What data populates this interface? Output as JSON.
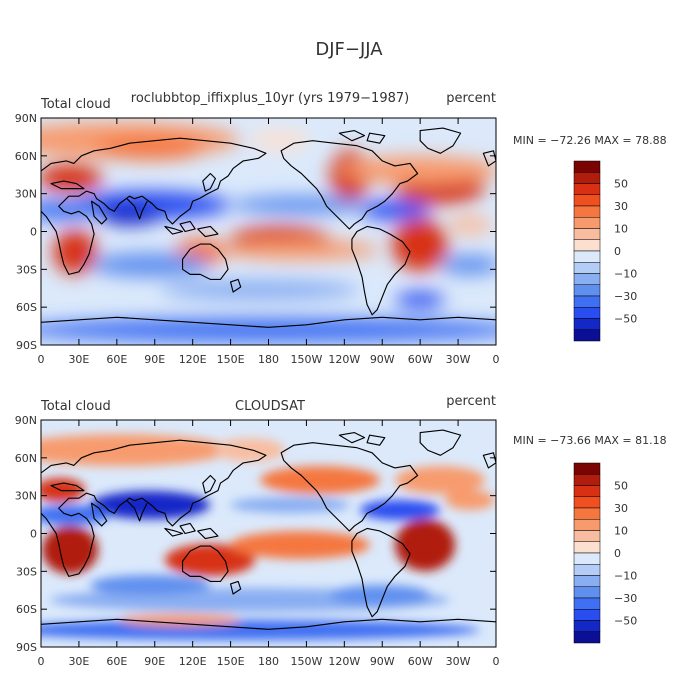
{
  "title": "DJF−JJA",
  "x_ticks": [
    "0",
    "30E",
    "60E",
    "90E",
    "120E",
    "150E",
    "180",
    "150W",
    "120W",
    "90W",
    "60W",
    "30W",
    "0"
  ],
  "y_ticks": [
    "90N",
    "60N",
    "30N",
    "0",
    "30S",
    "60S",
    "90S"
  ],
  "panels": [
    {
      "left_label": "Total cloud",
      "center_label": "roclubbtop_iffixplus_10yr (yrs 1979−1987)",
      "right_label": "percent",
      "stats": "MIN = −72.26   MAX =  78.88",
      "colorbar_labels": [
        "50",
        "30",
        "10",
        "0",
        "−10",
        "−30",
        "−50"
      ]
    },
    {
      "left_label": "Total cloud",
      "center_label": "CLOUDSAT",
      "right_label": "percent",
      "stats": "MIN = −73.66   MAX =  81.18",
      "colorbar_labels": [
        "50",
        "30",
        "10",
        "0",
        "−10",
        "−30",
        "−50"
      ]
    }
  ],
  "colorbar_colors": [
    "#7a0403",
    "#b01d0c",
    "#d73013",
    "#f0501f",
    "#f5773f",
    "#f79b6e",
    "#f8bda1",
    "#fbe0d0",
    "#dbe9fb",
    "#b4cdf6",
    "#8aaef2",
    "#6090ef",
    "#3f6ff2",
    "#2a4df0",
    "#1428c8",
    "#0a0f96"
  ],
  "chart_data": [
    {
      "type": "heatmap",
      "title": "DJF−JJA",
      "subtitle": "roclubbtop_iffixplus_10yr (yrs 1979−1987)",
      "variable": "Total cloud",
      "units": "percent",
      "x_range": [
        0,
        360
      ],
      "y_range": [
        -90,
        90
      ],
      "min": -72.26,
      "max": 78.88,
      "contour_levels": [
        -50,
        -30,
        -10,
        0,
        10,
        30,
        50
      ]
    },
    {
      "type": "heatmap",
      "title": "DJF−JJA",
      "subtitle": "CLOUDSAT",
      "variable": "Total cloud",
      "units": "percent",
      "x_range": [
        0,
        360
      ],
      "y_range": [
        -90,
        90
      ],
      "min": -73.66,
      "max": 81.18,
      "contour_levels": [
        -50,
        -30,
        -10,
        0,
        10,
        30,
        50
      ]
    }
  ]
}
